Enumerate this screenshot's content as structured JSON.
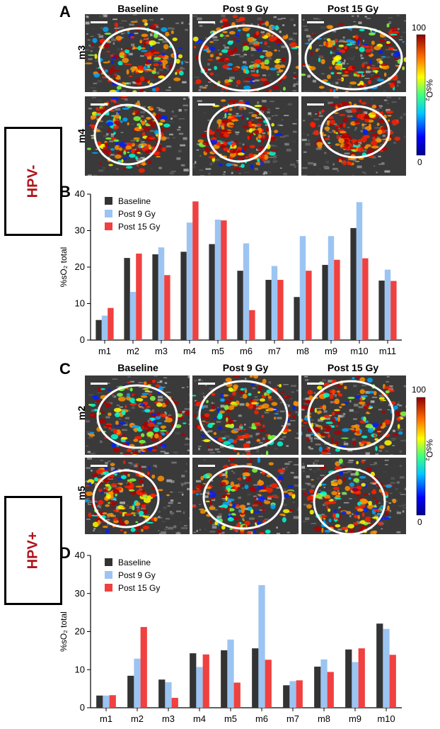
{
  "figure": {
    "panels": {
      "A": "A",
      "B": "B",
      "C": "C",
      "D": "D"
    },
    "column_titles": [
      "Baseline",
      "Post 9 Gy",
      "Post 15 Gy"
    ],
    "groups": [
      {
        "label": "HPV-",
        "color": "#b0141b"
      },
      {
        "label": "HPV+",
        "color": "#b0141b"
      }
    ],
    "image_rows_A": [
      "m3",
      "m4"
    ],
    "image_rows_C": [
      "m2",
      "m5"
    ],
    "colorbar": {
      "max": "100",
      "min": "0",
      "label": "%sO₂"
    },
    "series_colors": [
      "#333333",
      "#9cc4f2",
      "#f04040"
    ]
  },
  "chart_data": [
    {
      "panel": "B",
      "type": "bar",
      "categories": [
        "m1",
        "m2",
        "m3",
        "m4",
        "m5",
        "m6",
        "m7",
        "m8",
        "m9",
        "m10",
        "m11"
      ],
      "series": [
        {
          "name": "Baseline",
          "values": [
            5.5,
            22.5,
            23.5,
            24.2,
            26.3,
            19.0,
            16.5,
            11.8,
            20.6,
            30.7,
            16.3
          ]
        },
        {
          "name": "Post 9 Gy",
          "values": [
            6.7,
            13.2,
            25.4,
            32.2,
            33.0,
            26.5,
            20.3,
            28.5,
            28.5,
            37.8,
            19.3
          ]
        },
        {
          "name": "Post 15 Gy",
          "values": [
            8.8,
            23.7,
            17.8,
            38.0,
            32.8,
            8.2,
            16.5,
            19.0,
            22.0,
            22.4,
            16.2
          ]
        }
      ],
      "ylabel": "%sO₂ total",
      "ylim": [
        0,
        40
      ],
      "yticks": [
        "0",
        "10",
        "20",
        "30",
        "40"
      ],
      "legend": "top-left"
    },
    {
      "panel": "D",
      "type": "bar",
      "categories": [
        "m1",
        "m2",
        "m3",
        "m4",
        "m5",
        "m6",
        "m7",
        "m8",
        "m9",
        "m10"
      ],
      "series": [
        {
          "name": "Baseline",
          "values": [
            3.2,
            8.4,
            7.4,
            14.3,
            15.1,
            15.6,
            5.9,
            10.8,
            15.3,
            22.1
          ]
        },
        {
          "name": "Post 9 Gy",
          "values": [
            3.2,
            12.9,
            6.7,
            10.7,
            17.9,
            32.2,
            7.0,
            12.7,
            12.0,
            20.7
          ]
        },
        {
          "name": "Post 15 Gy",
          "values": [
            3.3,
            21.2,
            2.6,
            14.0,
            6.6,
            12.6,
            7.2,
            9.4,
            15.6,
            13.9
          ]
        }
      ],
      "ylabel": "%sO₂ total",
      "ylim": [
        0,
        40
      ],
      "yticks": [
        "0",
        "10",
        "20",
        "30",
        "40"
      ],
      "legend": "top-left"
    }
  ]
}
